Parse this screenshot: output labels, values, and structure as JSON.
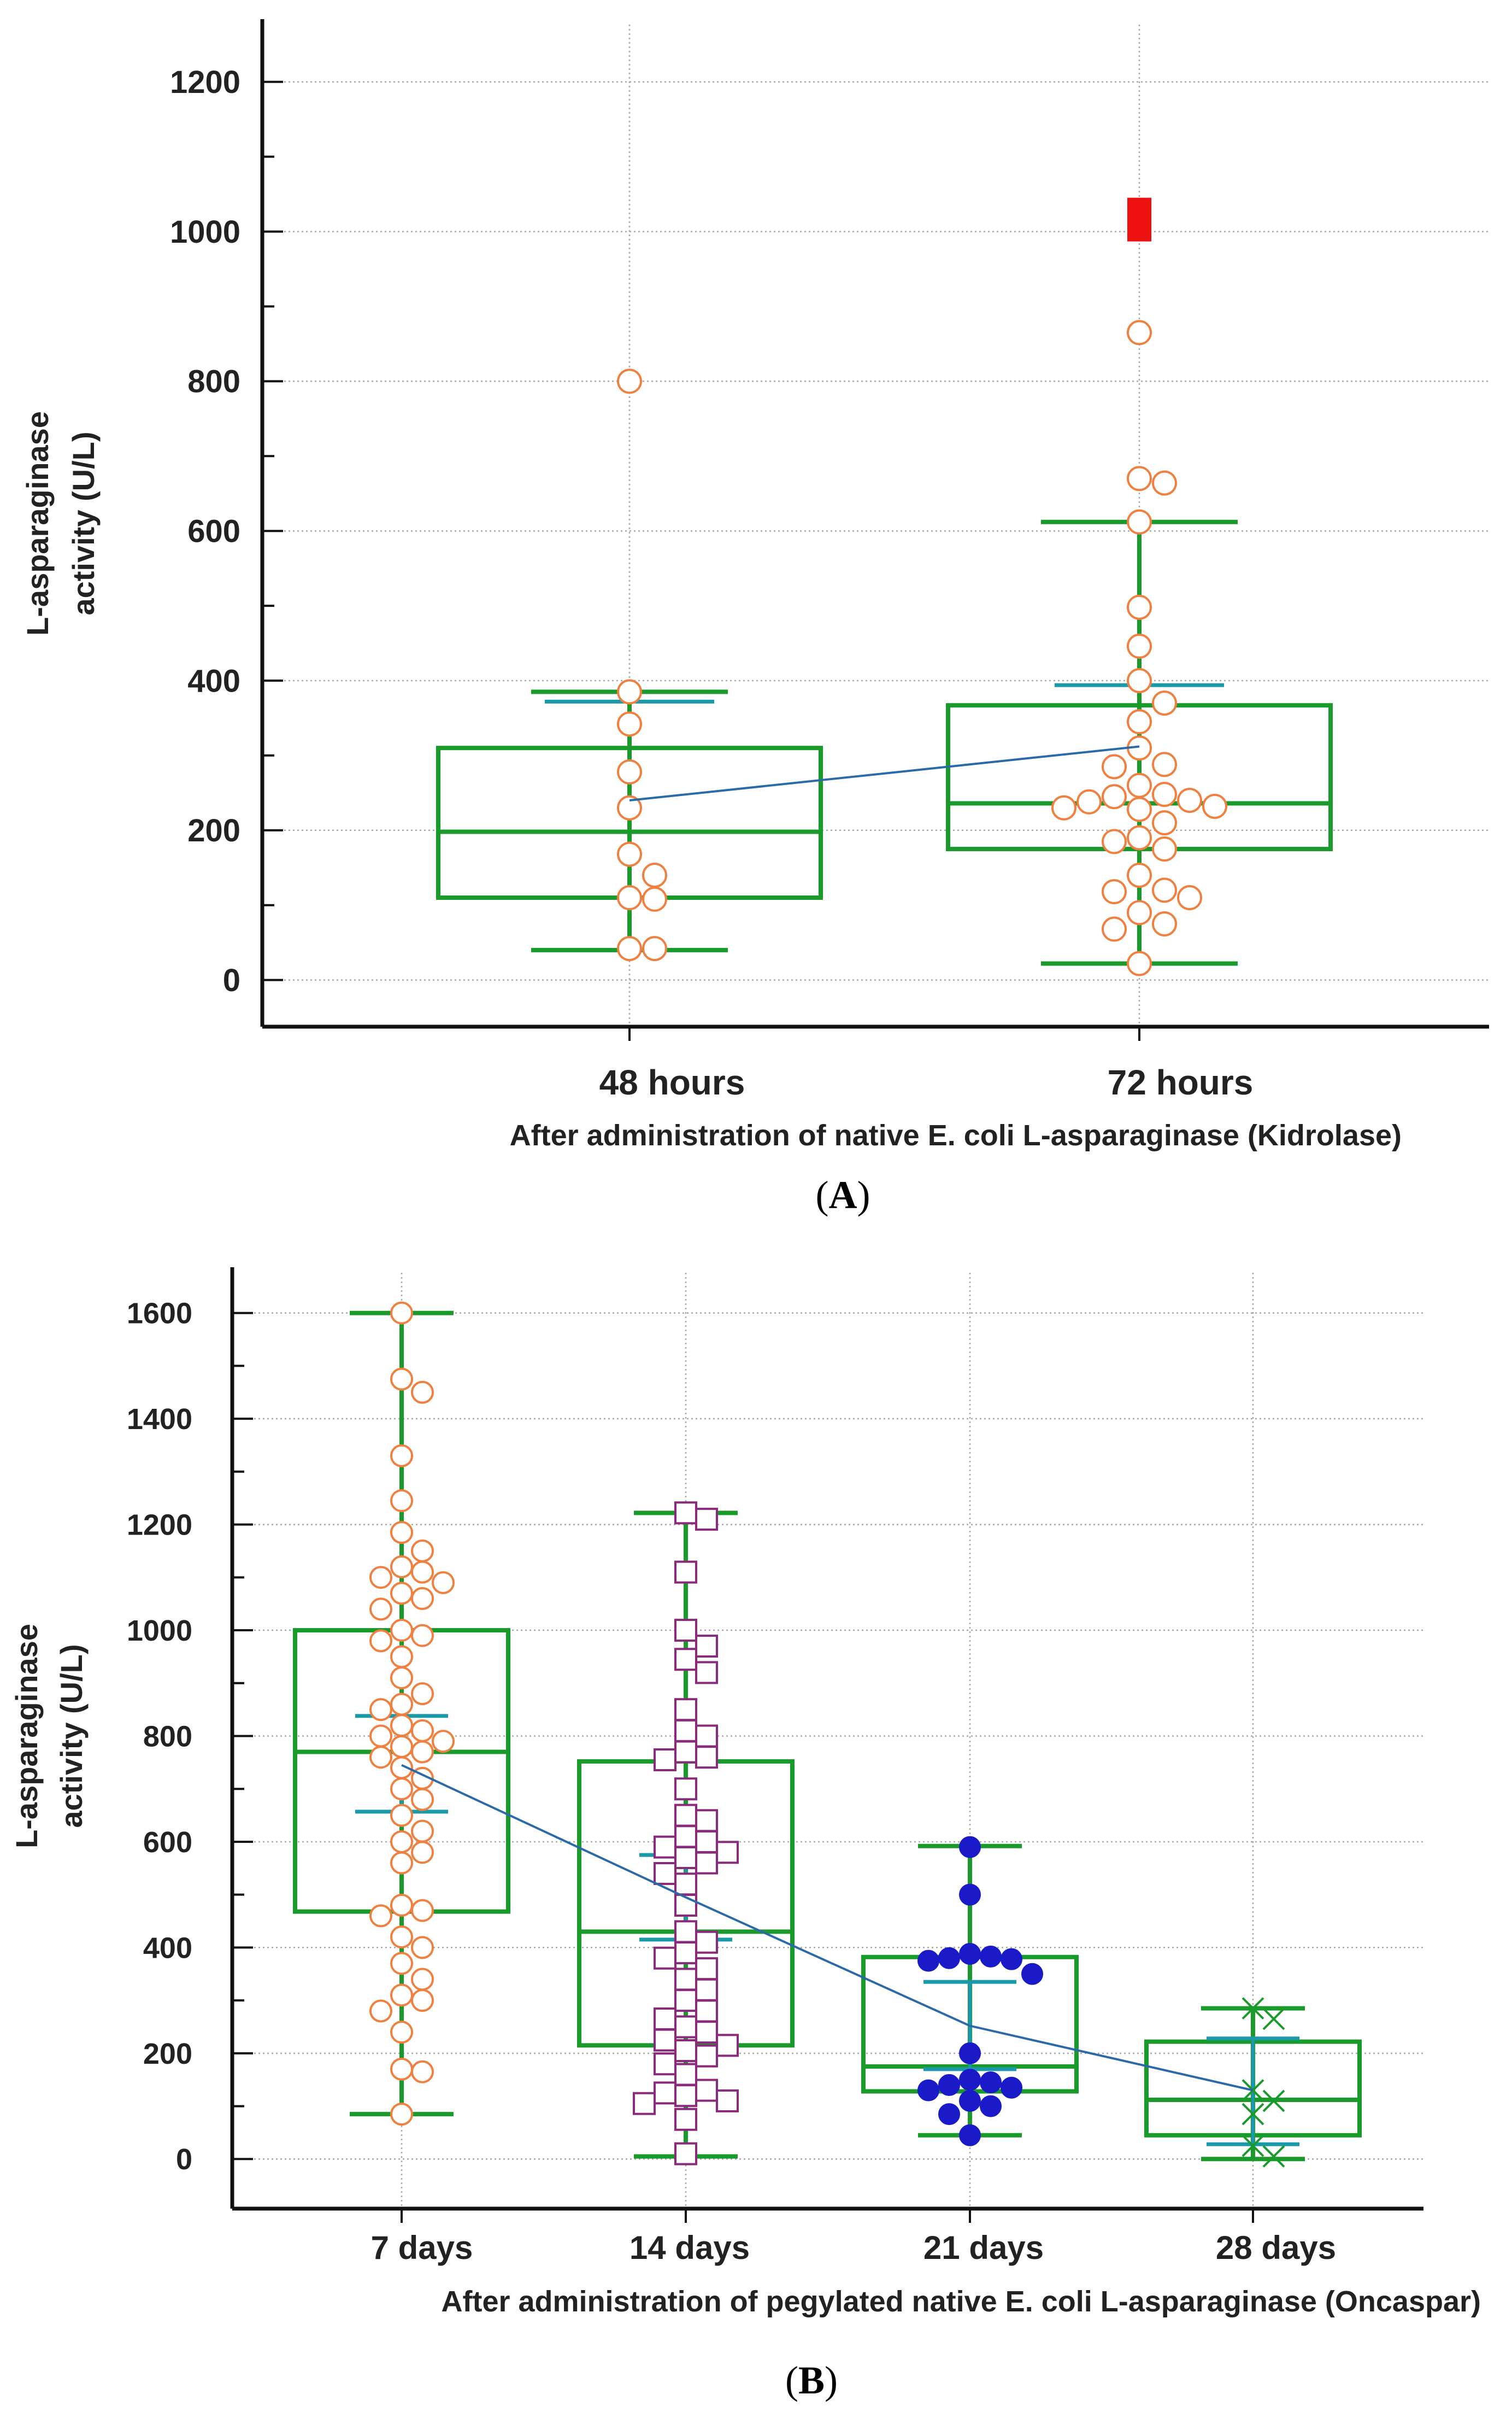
{
  "colors": {
    "box": "#1a9a2a",
    "ci": "#1a9aa8",
    "trend": "#2a6aa8",
    "grid": "#a8a8a8",
    "axis": "#111111",
    "orange": "#f08040",
    "purple": "#8a2a7a",
    "blue": "#1a1ac8",
    "green": "#1a9a2a",
    "red": "#ee1111"
  },
  "chart_data": [
    {
      "type": "box",
      "panel_label": "(A)",
      "panel_letter": "A",
      "ylabel_line1": "L-asparaginase",
      "ylabel_line2": "activity (U/L)",
      "xlabel": "After administration of native E. coli L-asparaginase (Kidrolase)",
      "ylim": [
        -20,
        1240
      ],
      "yticks": [
        0,
        200,
        400,
        600,
        800,
        1000,
        1200
      ],
      "categories": [
        {
          "label": "48 hours",
          "whisker_low": 40,
          "q1": 110,
          "median": 198,
          "q3": 310,
          "whisker_high": 385,
          "ci_high": 372,
          "mean": 240,
          "points": [
            800,
            385,
            342,
            278,
            230,
            168,
            140,
            110,
            108,
            42,
            42
          ],
          "marker": "circle",
          "color_key": "orange"
        },
        {
          "label": "72 hours",
          "whisker_low": 22,
          "q1": 175,
          "median": 236,
          "q3": 367,
          "whisker_high": 612,
          "ci_high": 394,
          "mean": 312,
          "points": [
            865,
            670,
            664,
            612,
            498,
            446,
            400,
            370,
            345,
            310,
            288,
            285,
            260,
            248,
            245,
            240,
            238,
            232,
            230,
            228,
            210,
            190,
            185,
            175,
            140,
            120,
            118,
            110,
            90,
            75,
            68,
            22
          ],
          "outliers": [
            1016
          ],
          "marker": "circle",
          "color_key": "orange"
        }
      ]
    },
    {
      "type": "box",
      "panel_label": "(B)",
      "panel_letter": "B",
      "ylabel_line1": "L-asparaginase",
      "ylabel_line2": "activity (U/L)",
      "xlabel": "After administration of pegylated native E. coli L-asparaginase (Oncaspar)",
      "ylim": [
        -40,
        1640
      ],
      "yticks": [
        0,
        200,
        400,
        600,
        800,
        1000,
        1200,
        1400,
        1600
      ],
      "minor_step": 100,
      "categories": [
        {
          "label": "7 days",
          "whisker_low": 85,
          "q1": 468,
          "median": 770,
          "q3": 1000,
          "whisker_high": 1600,
          "ci_low": 657,
          "ci_high": 838,
          "mean": 745,
          "points": [
            1600,
            1475,
            1450,
            1330,
            1245,
            1185,
            1150,
            1120,
            1110,
            1100,
            1090,
            1070,
            1060,
            1040,
            1000,
            990,
            980,
            950,
            910,
            880,
            860,
            850,
            820,
            810,
            800,
            790,
            780,
            770,
            760,
            740,
            720,
            700,
            680,
            650,
            620,
            600,
            580,
            560,
            480,
            470,
            460,
            420,
            400,
            370,
            340,
            310,
            300,
            280,
            240,
            170,
            165,
            85
          ],
          "marker": "circle",
          "color_key": "orange"
        },
        {
          "label": "14 days",
          "whisker_low": 5,
          "q1": 215,
          "median": 430,
          "q3": 752,
          "whisker_high": 1222,
          "ci_low": 415,
          "ci_high": 575,
          "mean": 495,
          "points": [
            1222,
            1210,
            1110,
            1000,
            970,
            945,
            920,
            850,
            810,
            800,
            770,
            760,
            755,
            700,
            650,
            640,
            610,
            600,
            590,
            580,
            570,
            560,
            540,
            520,
            480,
            430,
            410,
            390,
            380,
            360,
            340,
            320,
            300,
            280,
            265,
            250,
            240,
            225,
            215,
            205,
            195,
            180,
            160,
            130,
            125,
            120,
            110,
            105,
            75,
            10
          ],
          "marker": "square",
          "color_key": "purple"
        },
        {
          "label": "21 days",
          "whisker_low": 45,
          "q1": 128,
          "median": 175,
          "q3": 382,
          "whisker_high": 592,
          "ci_low": 170,
          "ci_high": 335,
          "mean": 252,
          "points": [
            590,
            500,
            388,
            383,
            380,
            378,
            375,
            350,
            200,
            150,
            145,
            140,
            135,
            130,
            110,
            100,
            85,
            45
          ],
          "marker": "dot",
          "color_key": "blue"
        },
        {
          "label": "28 days",
          "whisker_low": 0,
          "q1": 45,
          "median": 112,
          "q3": 222,
          "whisker_high": 285,
          "ci_low": 28,
          "ci_high": 228,
          "mean": 130,
          "points": [
            285,
            265,
            130,
            110,
            85,
            25,
            5
          ],
          "marker": "cross",
          "color_key": "green"
        }
      ]
    }
  ]
}
